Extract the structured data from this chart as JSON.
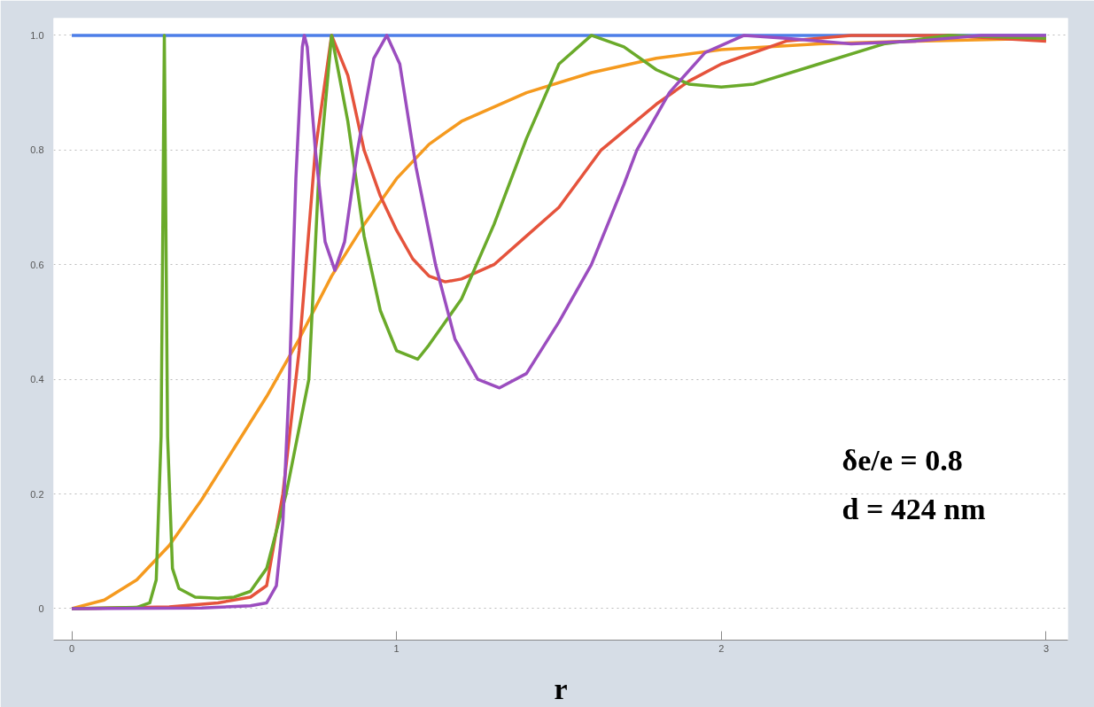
{
  "chart_data": {
    "type": "line",
    "xlabel": "r",
    "annotations": [
      "δe/e = 0.8",
      "d = 424 nm"
    ],
    "xlim": [
      -0.056,
      3.067
    ],
    "ylim": [
      -0.055,
      1.03
    ],
    "xticks": [
      0,
      1,
      2,
      3
    ],
    "yticks": [
      0,
      0.2,
      0.4,
      0.6,
      0.8,
      {
        "value": 1,
        "label": "1.0"
      }
    ],
    "grid": "y",
    "marker": "none",
    "line_style": "solid",
    "series": [
      {
        "color": "#4d7ee8",
        "x": [
          0,
          3
        ],
        "values": [
          1,
          1
        ]
      },
      {
        "color": "#f59a1f",
        "x": [
          0,
          0.1,
          0.2,
          0.3,
          0.4,
          0.5,
          0.6,
          0.7,
          0.8,
          0.9,
          1.0,
          1.1,
          1.2,
          1.4,
          1.6,
          1.8,
          2.0,
          2.3,
          2.6,
          3.0
        ],
        "values": [
          0,
          0.015,
          0.05,
          0.11,
          0.19,
          0.28,
          0.37,
          0.47,
          0.58,
          0.67,
          0.75,
          0.81,
          0.85,
          0.9,
          0.935,
          0.96,
          0.975,
          0.985,
          0.99,
          0.995
        ]
      },
      {
        "color": "#e5533c",
        "x": [
          0,
          0.3,
          0.45,
          0.55,
          0.6,
          0.65,
          0.7,
          0.75,
          0.8,
          0.85,
          0.9,
          0.95,
          1.0,
          1.05,
          1.1,
          1.15,
          1.2,
          1.3,
          1.4,
          1.5,
          1.63,
          1.8,
          1.9,
          2.0,
          2.2,
          2.4,
          2.7,
          3.0
        ],
        "values": [
          0,
          0.003,
          0.01,
          0.02,
          0.04,
          0.2,
          0.45,
          0.8,
          1.0,
          0.93,
          0.8,
          0.72,
          0.66,
          0.61,
          0.58,
          0.57,
          0.575,
          0.6,
          0.65,
          0.7,
          0.8,
          0.88,
          0.92,
          0.95,
          0.99,
          1.0,
          1.0,
          0.99
        ]
      },
      {
        "color": "#6aaa2a",
        "x": [
          0,
          0.2,
          0.24,
          0.26,
          0.275,
          0.285,
          0.295,
          0.31,
          0.33,
          0.38,
          0.45,
          0.5,
          0.55,
          0.6,
          0.66,
          0.73,
          0.76,
          0.8,
          0.85,
          0.9,
          0.95,
          1.0,
          1.065,
          1.1,
          1.2,
          1.3,
          1.4,
          1.5,
          1.6,
          1.7,
          1.8,
          1.9,
          2.0,
          2.1,
          2.3,
          2.5,
          2.7,
          3.0
        ],
        "values": [
          0,
          0.002,
          0.01,
          0.05,
          0.3,
          1.0,
          0.3,
          0.07,
          0.035,
          0.02,
          0.018,
          0.02,
          0.03,
          0.07,
          0.2,
          0.4,
          0.75,
          1.0,
          0.85,
          0.65,
          0.52,
          0.45,
          0.435,
          0.46,
          0.54,
          0.67,
          0.82,
          0.95,
          1.0,
          0.98,
          0.94,
          0.915,
          0.91,
          0.915,
          0.95,
          0.985,
          1.0,
          0.995
        ]
      },
      {
        "color": "#9b4dbf",
        "x": [
          0,
          0.4,
          0.55,
          0.6,
          0.63,
          0.65,
          0.67,
          0.69,
          0.71,
          0.716,
          0.725,
          0.75,
          0.78,
          0.81,
          0.84,
          0.88,
          0.93,
          0.97,
          1.01,
          1.06,
          1.12,
          1.18,
          1.25,
          1.317,
          1.4,
          1.5,
          1.6,
          1.7,
          1.74,
          1.84,
          1.95,
          2.07,
          2.2,
          2.4,
          2.6,
          2.8,
          3.0
        ],
        "values": [
          0,
          0.001,
          0.005,
          0.01,
          0.04,
          0.15,
          0.4,
          0.75,
          0.98,
          1.0,
          0.98,
          0.8,
          0.64,
          0.59,
          0.64,
          0.8,
          0.96,
          1.0,
          0.95,
          0.77,
          0.6,
          0.47,
          0.4,
          0.385,
          0.41,
          0.5,
          0.6,
          0.74,
          0.8,
          0.9,
          0.97,
          1.0,
          0.995,
          0.985,
          0.99,
          1.0,
          1.0
        ]
      }
    ]
  }
}
